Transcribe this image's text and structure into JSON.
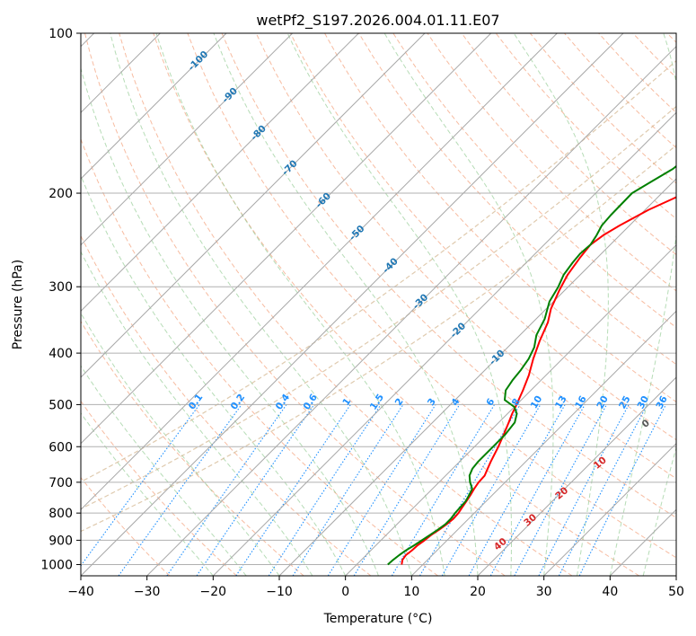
{
  "chart_data": {
    "type": "line",
    "title": "wetPf2_S197.2026.004.01.11.E07",
    "xlabel": "Temperature (°C)",
    "ylabel": "Pressure (hPa)",
    "xlim": [
      -40,
      50
    ],
    "ylim": [
      1050,
      100
    ],
    "grid": true,
    "x_ticks": [
      -40,
      -30,
      -20,
      -10,
      0,
      10,
      20,
      30,
      40,
      50
    ],
    "x_tick_labels": [
      "−40",
      "−30",
      "−20",
      "−10",
      "0",
      "10",
      "20",
      "30",
      "40",
      "50"
    ],
    "y_ticks": [
      1000,
      900,
      800,
      700,
      600,
      500,
      400,
      300,
      200,
      100
    ],
    "y_tick_labels": [
      "1000",
      "900",
      "800",
      "700",
      "600",
      "500",
      "400",
      "300",
      "200",
      "100"
    ],
    "isotherm_labels": [
      {
        "temp": -10,
        "text": "-10"
      },
      {
        "temp": -20,
        "text": "-20"
      },
      {
        "temp": -30,
        "text": "-30"
      },
      {
        "temp": -40,
        "text": "-40"
      },
      {
        "temp": -50,
        "text": "-50"
      },
      {
        "temp": -60,
        "text": "-60"
      },
      {
        "temp": -70,
        "text": "-70"
      },
      {
        "temp": -80,
        "text": "-80"
      },
      {
        "temp": -90,
        "text": "-90"
      },
      {
        "temp": -100,
        "text": "-100"
      }
    ],
    "mixing_ratio_labels": [
      {
        "value": 0.1,
        "text": "0.1"
      },
      {
        "value": 0.2,
        "text": "0.2"
      },
      {
        "value": 0.4,
        "text": "0.4"
      },
      {
        "value": 0.6,
        "text": "0.6"
      },
      {
        "value": 1,
        "text": "1"
      },
      {
        "value": 1.5,
        "text": "1.5"
      },
      {
        "value": 2,
        "text": "2"
      },
      {
        "value": 3,
        "text": "3"
      },
      {
        "value": 4,
        "text": "4"
      },
      {
        "value": 6,
        "text": "6"
      },
      {
        "value": 8,
        "text": "8"
      },
      {
        "value": 10,
        "text": "10"
      },
      {
        "value": 13,
        "text": "13"
      },
      {
        "value": 16,
        "text": "16"
      },
      {
        "value": 20,
        "text": "20"
      },
      {
        "value": 25,
        "text": "25"
      },
      {
        "value": 30,
        "text": "30"
      },
      {
        "value": 36,
        "text": "36"
      }
    ],
    "wet_bulb_labels": [
      {
        "value": 0,
        "text": "0",
        "color": "#555555"
      },
      {
        "value": 10,
        "text": "10",
        "color": "#d62728"
      },
      {
        "value": 20,
        "text": "20",
        "color": "#d62728"
      },
      {
        "value": 30,
        "text": "30",
        "color": "#d62728"
      },
      {
        "value": 40,
        "text": "40",
        "color": "#d62728"
      }
    ],
    "series": [
      {
        "name": "Temperature",
        "color": "#ff0000",
        "points": [
          [
            6.8,
            1000
          ],
          [
            6.2,
            980
          ],
          [
            6.0,
            960
          ],
          [
            6.2,
            940
          ],
          [
            6.3,
            920
          ],
          [
            6.6,
            900
          ],
          [
            6.8,
            880
          ],
          [
            7.2,
            860
          ],
          [
            7.5,
            840
          ],
          [
            7.7,
            820
          ],
          [
            7.6,
            800
          ],
          [
            7.3,
            780
          ],
          [
            7.0,
            760
          ],
          [
            6.7,
            740
          ],
          [
            6.3,
            720
          ],
          [
            6.0,
            700
          ],
          [
            5.9,
            680
          ],
          [
            5.3,
            660
          ],
          [
            4.7,
            640
          ],
          [
            3.6,
            600
          ],
          [
            2.6,
            570
          ],
          [
            1.5,
            540
          ],
          [
            0.7,
            520
          ],
          [
            0.0,
            500
          ],
          [
            -1.2,
            470
          ],
          [
            -2.6,
            440
          ],
          [
            -4.4,
            410
          ],
          [
            -6.1,
            380
          ],
          [
            -7.7,
            350
          ],
          [
            -9.3,
            330
          ],
          [
            -10.8,
            305
          ],
          [
            -11.9,
            285
          ],
          [
            -12.6,
            265
          ],
          [
            -13.0,
            250
          ],
          [
            -12.5,
            240
          ],
          [
            -11.5,
            230
          ],
          [
            -9.5,
            215
          ],
          [
            -7.5,
            205
          ],
          [
            -5.5,
            195
          ],
          [
            -4.0,
            185
          ],
          [
            -2.5,
            175
          ],
          [
            0.0,
            165
          ],
          [
            1.6,
            158
          ],
          [
            3.2,
            152
          ],
          [
            5.2,
            145
          ],
          [
            6.0,
            140
          ],
          [
            7.2,
            132
          ],
          [
            8.5,
            125
          ],
          [
            11.0,
            118
          ],
          [
            13.5,
            112
          ],
          [
            14.4,
            108
          ],
          [
            15.2,
            104
          ],
          [
            15.8,
            100
          ]
        ]
      },
      {
        "name": "Dewpoint",
        "color": "#008000",
        "points": [
          [
            4.7,
            1000
          ],
          [
            4.8,
            980
          ],
          [
            5.0,
            960
          ],
          [
            5.3,
            940
          ],
          [
            5.8,
            920
          ],
          [
            6.2,
            900
          ],
          [
            6.6,
            880
          ],
          [
            7.0,
            860
          ],
          [
            7.3,
            840
          ],
          [
            7.3,
            820
          ],
          [
            7.1,
            800
          ],
          [
            7.0,
            780
          ],
          [
            6.9,
            760
          ],
          [
            6.5,
            740
          ],
          [
            6.0,
            720
          ],
          [
            4.7,
            700
          ],
          [
            3.6,
            680
          ],
          [
            3.0,
            660
          ],
          [
            2.8,
            640
          ],
          [
            2.8,
            600
          ],
          [
            2.8,
            570
          ],
          [
            2.4,
            540
          ],
          [
            1.4,
            520
          ],
          [
            0.0,
            505
          ],
          [
            -2.5,
            490
          ],
          [
            -3.8,
            470
          ],
          [
            -4.3,
            450
          ],
          [
            -4.6,
            430
          ],
          [
            -5.1,
            410
          ],
          [
            -6.0,
            390
          ],
          [
            -7.5,
            370
          ],
          [
            -8.7,
            345
          ],
          [
            -10.6,
            320
          ],
          [
            -11.5,
            300
          ],
          [
            -12.5,
            285
          ],
          [
            -13.0,
            270
          ],
          [
            -13.2,
            260
          ],
          [
            -13.0,
            250
          ],
          [
            -13.5,
            240
          ],
          [
            -14.2,
            230
          ],
          [
            -14.4,
            220
          ],
          [
            -14.5,
            200
          ],
          [
            -13.3,
            190
          ],
          [
            -12.0,
            180
          ],
          [
            -11.5,
            170
          ],
          [
            -11.3,
            160
          ],
          [
            -10.0,
            150
          ],
          [
            -8.0,
            140
          ],
          [
            -6.5,
            132
          ],
          [
            -4.5,
            125
          ],
          [
            -3.0,
            118
          ],
          [
            0.0,
            110
          ],
          [
            1.8,
            104
          ],
          [
            3.1,
            100
          ]
        ]
      }
    ]
  }
}
